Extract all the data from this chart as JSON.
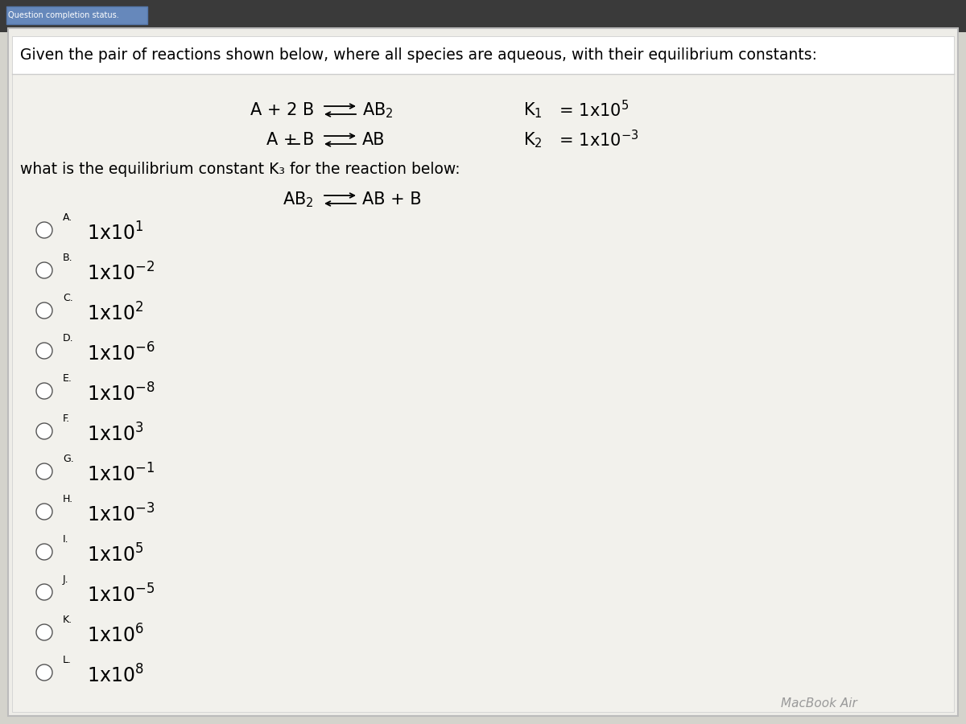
{
  "bg_top_color": "#c8c7c0",
  "bg_main_color": "#d4d3cc",
  "white_box_color": "#f0efea",
  "header_text": "Given the pair of reactions shown below, where all species are aqueous, with their equilibrium constants:",
  "question_text": "what is the equilibrium constant K₃ for the reaction below:",
  "footer_text": "MacBook Air",
  "options": [
    {
      "label": "A.",
      "exp": "1"
    },
    {
      "label": "B.",
      "exp": "-2"
    },
    {
      "label": "C.",
      "exp": "2"
    },
    {
      "label": "D.",
      "exp": "-6"
    },
    {
      "label": "E.",
      "exp": "-8"
    },
    {
      "label": "F.",
      "exp": "3"
    },
    {
      "label": "G.",
      "exp": "-1"
    },
    {
      "label": "H.",
      "exp": "-3"
    },
    {
      "label": "I.",
      "exp": "5"
    },
    {
      "label": "J.",
      "exp": "-5"
    },
    {
      "label": "K.",
      "exp": "6"
    },
    {
      "label": "L.",
      "exp": "8"
    }
  ]
}
